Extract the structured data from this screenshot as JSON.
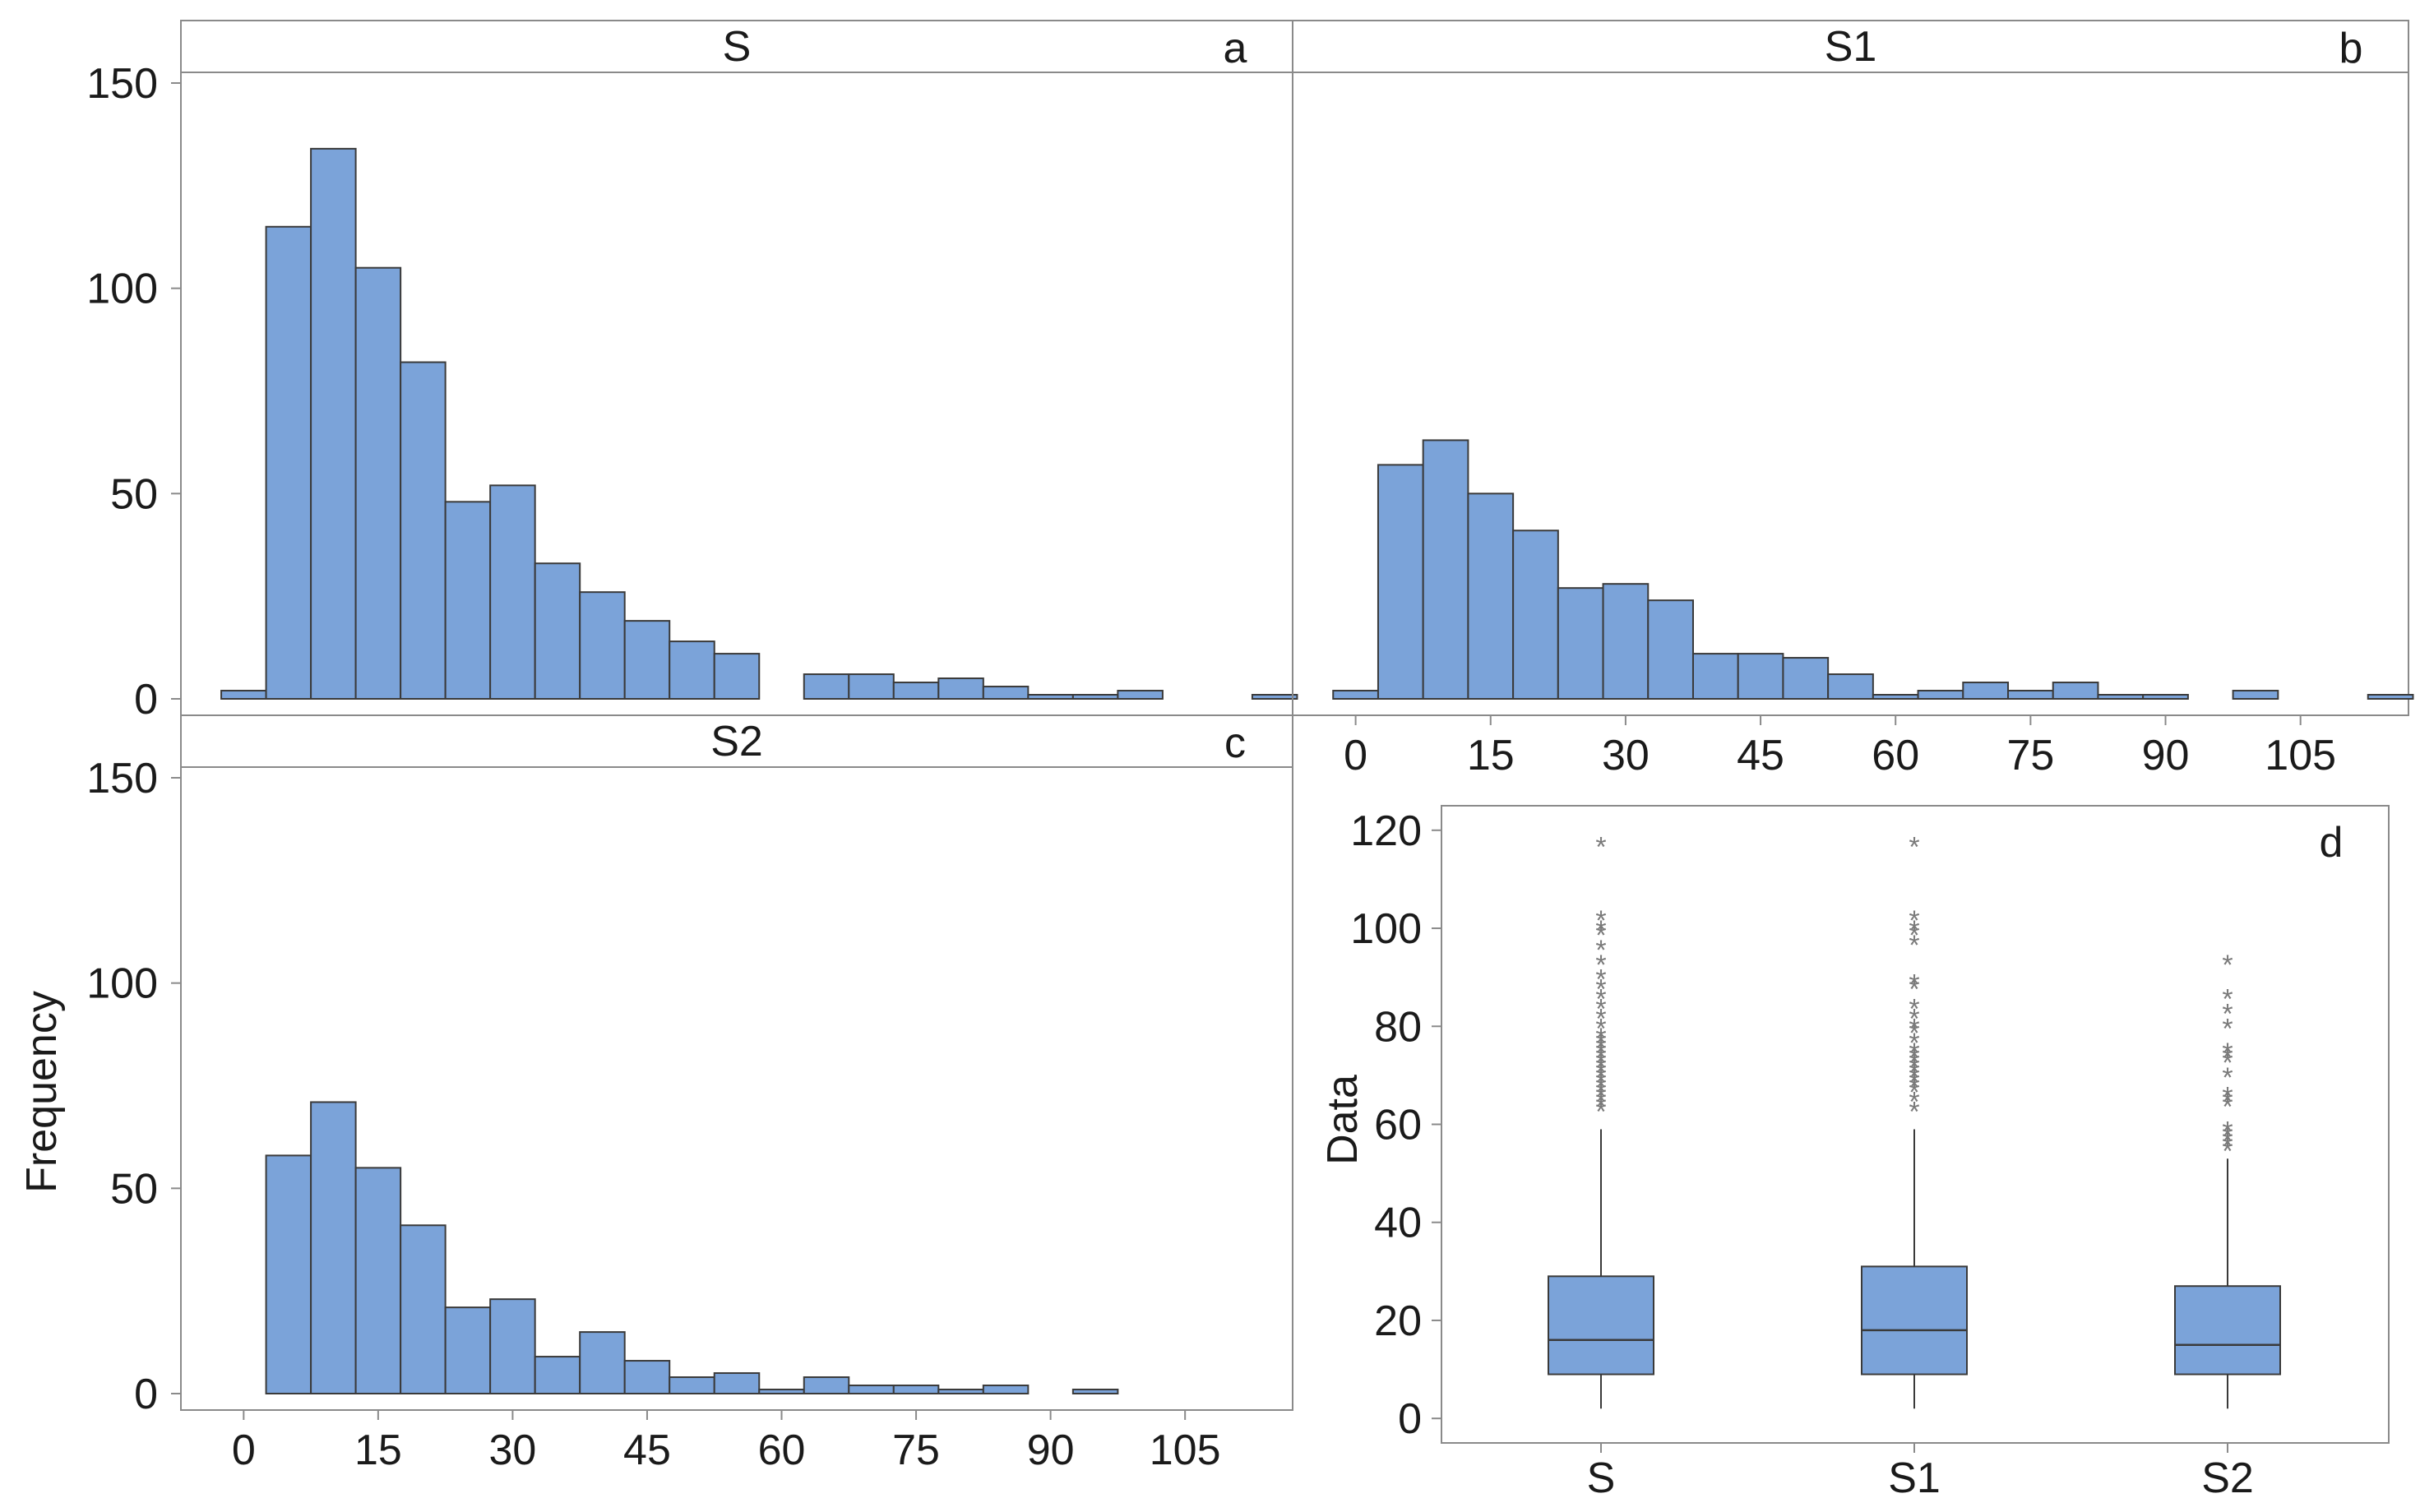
{
  "colors": {
    "bar_fill": "#7ba3d9",
    "bar_stroke": "#3a3a3a",
    "frame": "#8a8a8a",
    "text": "#1a1a1a",
    "outlier": "#7a7a7a"
  },
  "histogram_common": {
    "x_ticks": [
      "0",
      "15",
      "30",
      "45",
      "60",
      "75",
      "90",
      "105"
    ],
    "y_ticks": [
      "0",
      "50",
      "100",
      "150"
    ],
    "ylabel": "Frequency"
  },
  "chart_data": [
    {
      "type": "bar",
      "id": "a",
      "title": "S",
      "panel_letter": "a",
      "bin_width": 5,
      "bin_starts": [
        -2.5,
        2.5,
        7.5,
        12.5,
        17.5,
        22.5,
        27.5,
        32.5,
        37.5,
        42.5,
        47.5,
        52.5,
        57.5,
        62.5,
        67.5,
        72.5,
        77.5,
        82.5,
        87.5,
        92.5,
        97.5,
        102.5,
        107.5,
        112.5
      ],
      "values": [
        2,
        115,
        134,
        105,
        82,
        48,
        52,
        33,
        26,
        19,
        14,
        11,
        0,
        6,
        6,
        4,
        5,
        3,
        1,
        1,
        2,
        0,
        0,
        1
      ],
      "xlim": [
        -7,
        117
      ],
      "ylim": [
        0,
        150
      ]
    },
    {
      "type": "bar",
      "id": "b",
      "title": "S1",
      "panel_letter": "b",
      "bin_width": 5,
      "bin_starts": [
        -2.5,
        2.5,
        7.5,
        12.5,
        17.5,
        22.5,
        27.5,
        32.5,
        37.5,
        42.5,
        47.5,
        52.5,
        57.5,
        62.5,
        67.5,
        72.5,
        77.5,
        82.5,
        87.5,
        92.5,
        97.5,
        102.5,
        107.5,
        112.5
      ],
      "values": [
        2,
        57,
        63,
        50,
        41,
        27,
        28,
        24,
        11,
        11,
        10,
        6,
        1,
        2,
        4,
        2,
        4,
        1,
        1,
        0,
        2,
        0,
        0,
        1
      ],
      "xlim": [
        -7,
        117
      ],
      "ylim": [
        0,
        150
      ]
    },
    {
      "type": "bar",
      "id": "c",
      "title": "S2",
      "panel_letter": "c",
      "bin_width": 5,
      "bin_starts": [
        2.5,
        7.5,
        12.5,
        17.5,
        22.5,
        27.5,
        32.5,
        37.5,
        42.5,
        47.5,
        52.5,
        57.5,
        62.5,
        67.5,
        72.5,
        77.5,
        82.5,
        87.5,
        92.5
      ],
      "values": [
        58,
        71,
        55,
        41,
        21,
        23,
        9,
        15,
        8,
        4,
        5,
        1,
        4,
        2,
        2,
        1,
        2,
        0,
        1
      ],
      "xlim": [
        -7,
        117
      ],
      "ylim": [
        0,
        150
      ]
    },
    {
      "type": "box",
      "id": "d",
      "panel_letter": "d",
      "ylabel": "Data",
      "ylim": [
        -5,
        125
      ],
      "y_ticks": [
        "0",
        "20",
        "40",
        "60",
        "80",
        "100",
        "120"
      ],
      "categories": [
        "S",
        "S1",
        "S2"
      ],
      "boxes": [
        {
          "name": "S",
          "whisker_low": 2,
          "q1": 9,
          "median": 16,
          "q3": 29,
          "whisker_high": 59,
          "outliers": [
            63,
            64,
            65,
            66,
            67,
            68,
            69,
            70,
            71,
            72,
            73,
            74,
            75,
            76,
            77,
            78,
            80,
            82,
            84,
            86,
            88,
            90,
            93,
            96,
            99,
            100,
            102,
            117
          ]
        },
        {
          "name": "S1",
          "whisker_low": 2,
          "q1": 9,
          "median": 18,
          "q3": 31,
          "whisker_high": 59,
          "outliers": [
            63,
            65,
            67,
            68,
            69,
            70,
            71,
            72,
            73,
            74,
            75,
            77,
            79,
            80,
            82,
            84,
            88,
            89,
            97,
            99,
            100,
            102,
            117
          ]
        },
        {
          "name": "S2",
          "whisker_low": 2,
          "q1": 9,
          "median": 15,
          "q3": 27,
          "whisker_high": 53,
          "outliers": [
            55,
            56,
            57,
            58,
            59,
            64,
            65,
            66,
            70,
            73,
            74,
            75,
            80,
            83,
            86,
            93
          ]
        }
      ]
    }
  ]
}
